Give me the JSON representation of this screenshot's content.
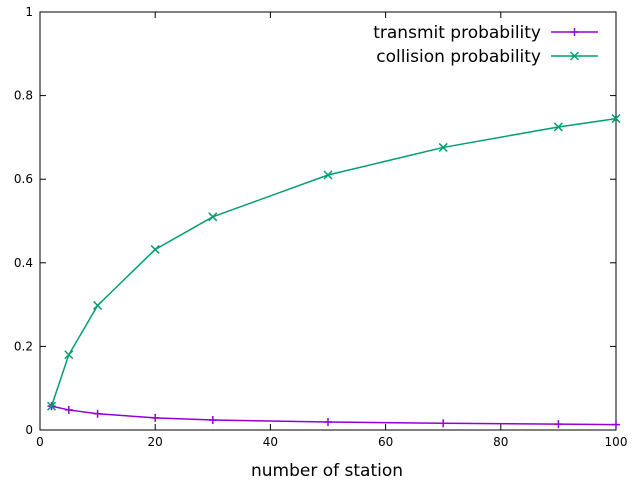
{
  "chart_data": {
    "type": "line",
    "xlabel": "number of station",
    "ylabel": "",
    "xlim": [
      0,
      100
    ],
    "ylim": [
      0,
      1
    ],
    "x_ticks": [
      0,
      20,
      40,
      60,
      80,
      100
    ],
    "y_ticks": [
      0,
      0.2,
      0.4,
      0.6,
      0.8,
      1
    ],
    "x_tick_labels": [
      "0",
      "20",
      "40",
      "60",
      "80",
      "100"
    ],
    "y_tick_labels": [
      "0",
      "0.2",
      "0.4",
      "0.6",
      "0.8",
      "1"
    ],
    "grid": false,
    "legend_position": "top-right",
    "series": [
      {
        "name": "transmit probability",
        "color": "#9400d3",
        "marker": "plus",
        "x": [
          2,
          5,
          10,
          20,
          30,
          50,
          70,
          90,
          100
        ],
        "y": [
          0.057,
          0.048,
          0.039,
          0.029,
          0.024,
          0.019,
          0.016,
          0.014,
          0.013
        ]
      },
      {
        "name": "collision probability",
        "color": "#009e73",
        "marker": "cross",
        "x": [
          2,
          5,
          10,
          20,
          30,
          50,
          70,
          90,
          100
        ],
        "y": [
          0.057,
          0.18,
          0.298,
          0.432,
          0.51,
          0.61,
          0.676,
          0.725,
          0.745
        ]
      }
    ]
  }
}
